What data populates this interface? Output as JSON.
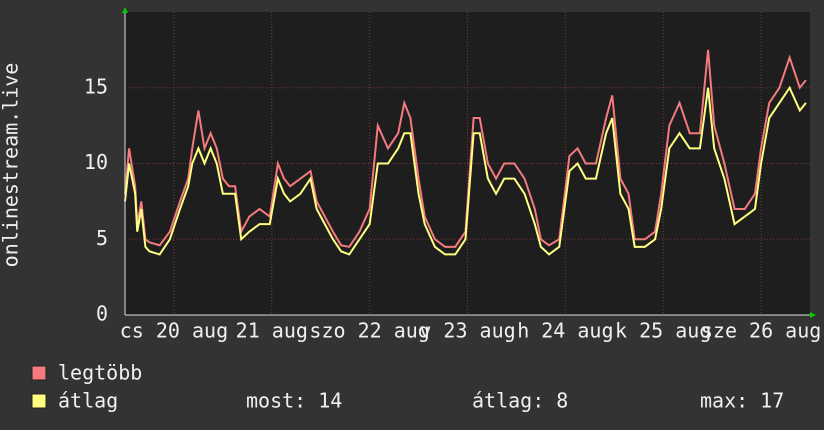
{
  "chart_data": {
    "type": "line",
    "y_label": "onlinestream.live",
    "xlim": [
      0,
      168
    ],
    "xticks": [
      {
        "value": 12,
        "label": "cs 20 aug"
      },
      {
        "value": 36,
        "label": "21 aug"
      },
      {
        "value": 60,
        "label": "szo 22 aug"
      },
      {
        "value": 84,
        "label": "v 23 aug"
      },
      {
        "value": 108,
        "label": "h 24 aug"
      },
      {
        "value": 132,
        "label": "k 25 aug"
      },
      {
        "value": 156,
        "label": "sze 26 aug"
      }
    ],
    "ylim": [
      0,
      20
    ],
    "yticks": [
      0,
      5,
      10,
      15
    ],
    "grid": true,
    "x": [
      0,
      1,
      2.5,
      3,
      4,
      5,
      6,
      8.5,
      11,
      13.5,
      15.5,
      16.5,
      18,
      19.5,
      21,
      22.5,
      24,
      25.5,
      27,
      28.5,
      30.5,
      33,
      35.5,
      37.5,
      39,
      40.5,
      43,
      45.5,
      47,
      49,
      51,
      53,
      55,
      57.5,
      60,
      62,
      64.5,
      67,
      68.5,
      70,
      72,
      73.5,
      76,
      78.5,
      81,
      83.5,
      85.5,
      87,
      89,
      91,
      93,
      95.5,
      98,
      100.5,
      102,
      104,
      106.5,
      109,
      111,
      113,
      115.5,
      118,
      119.5,
      121.5,
      123.5,
      125,
      127.5,
      130,
      131.5,
      133.5,
      136,
      138.5,
      141,
      143,
      144.5,
      147,
      149.5,
      152,
      154.5,
      156,
      158,
      160.5,
      163,
      165.5,
      167
    ],
    "series": [
      {
        "name": "legtöbb",
        "color": "#f47a7e",
        "values": [
          8,
          11,
          8.5,
          6,
          7.5,
          5,
          4.8,
          4.6,
          5.5,
          7.5,
          9,
          11,
          13.5,
          11,
          12,
          11,
          9,
          8.5,
          8.5,
          5.5,
          6.5,
          7,
          6.5,
          10,
          9,
          8.5,
          9,
          9.5,
          7.5,
          6.5,
          5.5,
          4.6,
          4.5,
          5.5,
          7,
          12.5,
          11,
          12,
          14,
          13,
          9,
          6.5,
          5,
          4.5,
          4.5,
          5.5,
          13,
          13,
          10,
          9,
          10,
          10,
          9,
          7,
          5,
          4.6,
          5,
          10.5,
          11,
          10,
          10,
          13,
          14.5,
          9,
          8,
          5,
          5,
          5.5,
          8,
          12.5,
          14,
          12,
          12,
          17.5,
          12.5,
          10,
          7,
          7,
          8,
          11,
          14,
          15,
          17,
          15,
          15.5
        ]
      },
      {
        "name": "átlag",
        "color": "#ffff80",
        "values": [
          7.5,
          10,
          8,
          5.5,
          7,
          4.5,
          4.2,
          4,
          5,
          7,
          8.5,
          10,
          11,
          10,
          11,
          10,
          8,
          8,
          8,
          5,
          5.5,
          6,
          6,
          9,
          8,
          7.5,
          8,
          9,
          7,
          6,
          5,
          4.2,
          4,
          5,
          6,
          10,
          10,
          11,
          12,
          12,
          8,
          6,
          4.5,
          4,
          4,
          5,
          12,
          12,
          9,
          8,
          9,
          9,
          8,
          6,
          4.5,
          4,
          4.5,
          9.5,
          10,
          9,
          9,
          12,
          13,
          8,
          7,
          4.5,
          4.5,
          5,
          7,
          11,
          12,
          11,
          11,
          15,
          11,
          9,
          6,
          6.5,
          7,
          10,
          13,
          14,
          15,
          13.5,
          14
        ]
      }
    ],
    "stats": [
      {
        "label": "most:",
        "value": 14
      },
      {
        "label": "átlag:",
        "value": 8
      },
      {
        "label": "max:",
        "value": 17
      }
    ]
  }
}
